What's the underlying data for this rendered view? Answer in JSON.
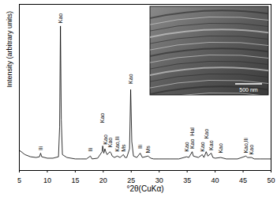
{
  "chart_data": {
    "type": "line",
    "x_label": "°2θ(CuKα)",
    "y_label": "Intensity (arbitrary units)",
    "color": "#000000",
    "xlim": [
      5,
      50
    ],
    "xticks": [
      5,
      10,
      15,
      20,
      25,
      30,
      35,
      40,
      45,
      50
    ],
    "ylim": [
      0,
      115
    ],
    "yticks": [],
    "tick_labels": "x",
    "grid": false,
    "x": [
      5,
      6,
      7,
      8,
      8.6,
      8.8,
      9.0,
      10,
      11,
      12,
      12.2,
      12.35,
      12.5,
      12.7,
      13.5,
      15,
      16,
      17,
      17.7,
      18,
      19,
      19.8,
      19.9,
      20.1,
      20.3,
      20.45,
      20.7,
      21.2,
      21.4,
      21.6,
      22,
      22.5,
      23,
      23.6,
      23.9,
      24.2,
      24.7,
      24.9,
      25.1,
      25.4,
      26,
      26.6,
      27,
      28,
      28.5,
      29,
      30,
      32,
      33.5,
      34.9,
      35.3,
      35.9,
      36.1,
      37,
      37.7,
      38.0,
      38.4,
      38.7,
      39.3,
      39.6,
      40,
      41,
      42,
      44,
      45.5,
      45.8,
      46.5,
      47,
      48,
      50
    ],
    "values": [
      14,
      11,
      9.5,
      9,
      9.5,
      12,
      9.5,
      8.5,
      8.5,
      9.5,
      30,
      100,
      35,
      11,
      9,
      8,
      8,
      8,
      10,
      8,
      8.5,
      13,
      17,
      12,
      15,
      13,
      11,
      13,
      12,
      10,
      9,
      10,
      9,
      11,
      9,
      9,
      15,
      56,
      20,
      10,
      9,
      12,
      9,
      10,
      8.5,
      8,
      8,
      8,
      8,
      9.5,
      9,
      13,
      10,
      9,
      11,
      9,
      13,
      10,
      12,
      9,
      8.5,
      9,
      8,
      8,
      10,
      9,
      9,
      8,
      8,
      8
    ],
    "annotations": [
      {
        "text": "Ili",
        "x": 8.8,
        "y": 14
      },
      {
        "text": "Kao",
        "x": 12.35,
        "y": 102
      },
      {
        "text": "Ili",
        "x": 17.7,
        "y": 13
      },
      {
        "text": "Kao",
        "x": 19.9,
        "y": 33
      },
      {
        "text": "Kao",
        "x": 20.45,
        "y": 18
      },
      {
        "text": "Kao",
        "x": 21.3,
        "y": 16
      },
      {
        "text": "Kao,Ili",
        "x": 22.5,
        "y": 13
      },
      {
        "text": "Ms",
        "x": 23.6,
        "y": 13
      },
      {
        "text": "Kao",
        "x": 24.9,
        "y": 60
      },
      {
        "text": "Ili",
        "x": 26.6,
        "y": 15
      },
      {
        "text": "Ms",
        "x": 28.0,
        "y": 12
      },
      {
        "text": "Kao",
        "x": 34.9,
        "y": 13
      },
      {
        "text": "Hal",
        "x": 35.9,
        "y": 24
      },
      {
        "text": "Kao",
        "x": 35.9,
        "y": 15
      },
      {
        "text": "Kao",
        "x": 37.7,
        "y": 13
      },
      {
        "text": "Kao",
        "x": 38.4,
        "y": 22
      },
      {
        "text": "Kao",
        "x": 39.3,
        "y": 14
      },
      {
        "text": "Kao",
        "x": 41.0,
        "y": 12
      },
      {
        "text": "Kao,Ili",
        "x": 45.5,
        "y": 12
      },
      {
        "text": "Kao",
        "x": 46.5,
        "y": 11
      }
    ],
    "inset": {
      "scale_bar_label": "500 nm"
    }
  }
}
